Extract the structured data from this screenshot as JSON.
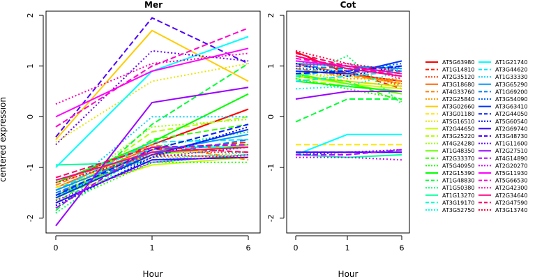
{
  "chart_data": {
    "type": "line",
    "ylabel": "centered expression",
    "xlabel": "Hour",
    "ylim": [
      -2.2,
      2.2
    ],
    "yticks": [
      -2,
      -1,
      0,
      1,
      2
    ],
    "x": [
      0,
      1,
      6
    ],
    "xtick_labels": [
      "0",
      "1",
      "6"
    ],
    "legend_position": "right",
    "panels": [
      {
        "title": "Mer"
      },
      {
        "title": "Cot"
      }
    ],
    "series": [
      {
        "name": "AT5G63980",
        "color": "#ff0000",
        "dash": "solid",
        "mer": [
          -1.3,
          -0.55,
          0.15
        ],
        "cot": [
          1.28,
          0.85,
          0.7
        ]
      },
      {
        "name": "AT1G14810",
        "color": "#ff1a00",
        "dash": "dashed",
        "mer": [
          -1.45,
          -0.65,
          -0.5
        ],
        "cot": [
          1.2,
          0.9,
          0.55
        ]
      },
      {
        "name": "AT2G35120",
        "color": "#ff3300",
        "dash": "dotted",
        "mer": [
          -1.55,
          -0.7,
          -0.7
        ],
        "cot": [
          1.1,
          0.95,
          0.6
        ]
      },
      {
        "name": "AT3G18680",
        "color": "#ff6600",
        "dash": "solid",
        "mer": [
          -1.4,
          -0.6,
          -0.6
        ],
        "cot": [
          1.05,
          0.85,
          0.65
        ]
      },
      {
        "name": "AT4G33760",
        "color": "#ff8000",
        "dash": "dashed",
        "mer": [
          -1.35,
          -0.55,
          -0.85
        ],
        "cot": [
          0.95,
          0.8,
          0.7
        ]
      },
      {
        "name": "AT2G25840",
        "color": "#ff9900",
        "dash": "dotted",
        "mer": [
          -1.5,
          -0.8,
          -0.75
        ],
        "cot": [
          1.0,
          0.75,
          0.75
        ]
      },
      {
        "name": "AT3G02660",
        "color": "#ffcc00",
        "dash": "solid",
        "mer": [
          -0.45,
          1.7,
          0.7
        ],
        "cot": [
          0.8,
          0.7,
          0.6
        ]
      },
      {
        "name": "AT3G01180",
        "color": "#ffe600",
        "dash": "dashed",
        "mer": [
          -1.4,
          -0.75,
          -0.6
        ],
        "cot": [
          -0.55,
          -0.55,
          -0.55
        ]
      },
      {
        "name": "AT5G16510",
        "color": "#e6e600",
        "dash": "dotted",
        "mer": [
          -0.5,
          0.7,
          1.05
        ],
        "cot": [
          0.85,
          0.8,
          0.65
        ]
      },
      {
        "name": "AT2G44650",
        "color": "#ccff00",
        "dash": "solid",
        "mer": [
          -1.55,
          -0.95,
          -0.8
        ],
        "cot": [
          0.8,
          0.65,
          0.55
        ]
      },
      {
        "name": "AT3G25220",
        "color": "#b3ff00",
        "dash": "dashed",
        "mer": [
          -1.65,
          -0.3,
          0.0
        ],
        "cot": [
          0.75,
          0.6,
          0.5
        ]
      },
      {
        "name": "AT4G24280",
        "color": "#99ff00",
        "dash": "dotted",
        "mer": [
          -1.6,
          -0.2,
          -0.05
        ],
        "cot": [
          0.9,
          0.7,
          0.6
        ]
      },
      {
        "name": "AT1G48350",
        "color": "#66ff00",
        "dash": "solid",
        "mer": [
          -1.55,
          -0.75,
          -0.55
        ],
        "cot": [
          0.85,
          0.65,
          0.45
        ]
      },
      {
        "name": "AT2G33370",
        "color": "#33ff00",
        "dash": "dashed",
        "mer": [
          -1.7,
          -0.45,
          -0.15
        ],
        "cot": [
          0.8,
          0.7,
          0.3
        ]
      },
      {
        "name": "AT5G40950",
        "color": "#1aff00",
        "dash": "dotted",
        "mer": [
          -1.75,
          -0.9,
          -0.9
        ],
        "cot": [
          0.75,
          0.55,
          0.35
        ]
      },
      {
        "name": "AT2G15390",
        "color": "#00ff00",
        "dash": "solid",
        "mer": [
          -1.3,
          -0.5,
          0.45
        ],
        "cot": [
          0.7,
          0.6,
          0.5
        ]
      },
      {
        "name": "AT1G48830",
        "color": "#00ff33",
        "dash": "dashed",
        "mer": [
          -1.85,
          -0.15,
          1.05
        ],
        "cot": [
          -0.1,
          0.35,
          0.35
        ]
      },
      {
        "name": "AT1G50380",
        "color": "#00ff66",
        "dash": "dotted",
        "mer": [
          -1.9,
          -0.6,
          -0.3
        ],
        "cot": [
          0.75,
          1.2,
          0.25
        ]
      },
      {
        "name": "AT1G13270",
        "color": "#00ff99",
        "dash": "solid",
        "mer": [
          -0.95,
          -0.9,
          -0.75
        ],
        "cot": [
          -0.75,
          -0.8,
          -0.75
        ]
      },
      {
        "name": "AT3G19170",
        "color": "#00ffcc",
        "dash": "dashed",
        "mer": [
          -1.6,
          -0.6,
          -0.6
        ],
        "cot": [
          0.8,
          0.95,
          1.0
        ]
      },
      {
        "name": "AT3G52750",
        "color": "#00ffe6",
        "dash": "dotted",
        "mer": [
          -1.65,
          -0.85,
          -0.7
        ],
        "cot": [
          0.55,
          0.6,
          0.9
        ]
      },
      {
        "name": "AT1G21740",
        "color": "#00ffff",
        "dash": "solid",
        "mer": [
          -1.0,
          0.9,
          1.58
        ],
        "cot": [
          -0.75,
          -0.35,
          -0.35
        ]
      },
      {
        "name": "AT3G44620",
        "color": "#00e6ff",
        "dash": "dashed",
        "mer": [
          -1.45,
          -0.5,
          -0.45
        ],
        "cot": [
          0.7,
          0.8,
          0.9
        ]
      },
      {
        "name": "AT1G33330",
        "color": "#00ccff",
        "dash": "dotted",
        "mer": [
          -1.6,
          0.0,
          0.0
        ],
        "cot": [
          0.9,
          0.85,
          0.95
        ]
      },
      {
        "name": "AT3G65290",
        "color": "#0099ff",
        "dash": "solid",
        "mer": [
          -1.45,
          -0.7,
          -0.35
        ],
        "cot": [
          1.05,
          1.0,
          0.95
        ]
      },
      {
        "name": "AT1G69200",
        "color": "#0080ff",
        "dash": "dashed",
        "mer": [
          -1.5,
          -0.75,
          -0.45
        ],
        "cot": [
          1.0,
          0.95,
          0.9
        ]
      },
      {
        "name": "AT3G54090",
        "color": "#0066ff",
        "dash": "dotted",
        "mer": [
          -1.55,
          -0.8,
          -0.6
        ],
        "cot": [
          0.95,
          0.9,
          1.05
        ]
      },
      {
        "name": "AT3G63410",
        "color": "#0033ff",
        "dash": "solid",
        "mer": [
          -1.6,
          -0.75,
          -0.25
        ],
        "cot": [
          0.9,
          0.85,
          1.1
        ]
      },
      {
        "name": "AT2G44050",
        "color": "#001aff",
        "dash": "dashed",
        "mer": [
          -1.55,
          -0.65,
          -0.15
        ],
        "cot": [
          0.85,
          0.9,
          1.0
        ]
      },
      {
        "name": "AT5G60540",
        "color": "#0000ff",
        "dash": "dotted",
        "mer": [
          -1.75,
          -0.8,
          -0.2
        ],
        "cot": [
          1.05,
          0.8,
          1.0
        ]
      },
      {
        "name": "AT2G69740",
        "color": "#3300ff",
        "dash": "solid",
        "mer": [
          -1.7,
          -0.85,
          -0.8
        ],
        "cot": [
          -0.7,
          -0.7,
          -0.7
        ]
      },
      {
        "name": "AT3G48730",
        "color": "#4d00ff",
        "dash": "dashed",
        "mer": [
          -0.4,
          1.95,
          1.05
        ],
        "cot": [
          -0.7,
          -0.7,
          -0.7
        ]
      },
      {
        "name": "AT1G11600",
        "color": "#6600ff",
        "dash": "dotted",
        "mer": [
          -0.55,
          1.3,
          1.1
        ],
        "cot": [
          -0.75,
          -0.7,
          -0.65
        ]
      },
      {
        "name": "AT2G27510",
        "color": "#9900ff",
        "dash": "solid",
        "mer": [
          -2.15,
          0.28,
          0.58
        ],
        "cot": [
          0.35,
          0.5,
          0.5
        ]
      },
      {
        "name": "AT4G14890",
        "color": "#b300ff",
        "dash": "dashed",
        "mer": [
          -1.8,
          -0.6,
          -0.55
        ],
        "cot": [
          -0.75,
          -0.75,
          -0.65
        ]
      },
      {
        "name": "AT2G20270",
        "color": "#cc00ff",
        "dash": "dotted",
        "mer": [
          -1.65,
          -0.9,
          -0.75
        ],
        "cot": [
          -0.8,
          -0.8,
          -0.85
        ]
      },
      {
        "name": "AT5G11930",
        "color": "#ff00ff",
        "dash": "solid",
        "mer": [
          0.0,
          0.9,
          1.35
        ],
        "cot": [
          1.1,
          1.0,
          0.85
        ]
      },
      {
        "name": "AT5G66530",
        "color": "#ff00cc",
        "dash": "dashed",
        "mer": [
          -0.2,
          1.0,
          1.75
        ],
        "cot": [
          1.15,
          1.0,
          0.8
        ]
      },
      {
        "name": "AT2G42300",
        "color": "#ff00b3",
        "dash": "dotted",
        "mer": [
          0.25,
          1.05,
          1.25
        ],
        "cot": [
          1.0,
          1.05,
          0.75
        ]
      },
      {
        "name": "AT2G34640",
        "color": "#ff0080",
        "dash": "solid",
        "mer": [
          -1.25,
          -0.7,
          -0.6
        ],
        "cot": [
          1.2,
          0.95,
          0.8
        ]
      },
      {
        "name": "AT2G47590",
        "color": "#ff0066",
        "dash": "dashed",
        "mer": [
          -1.2,
          -0.6,
          -0.7
        ],
        "cot": [
          1.25,
          1.0,
          0.85
        ]
      },
      {
        "name": "AT3G13740",
        "color": "#ff0033",
        "dash": "dotted",
        "mer": [
          -1.3,
          -0.75,
          -0.8
        ],
        "cot": [
          1.3,
          1.05,
          0.9
        ]
      }
    ]
  }
}
